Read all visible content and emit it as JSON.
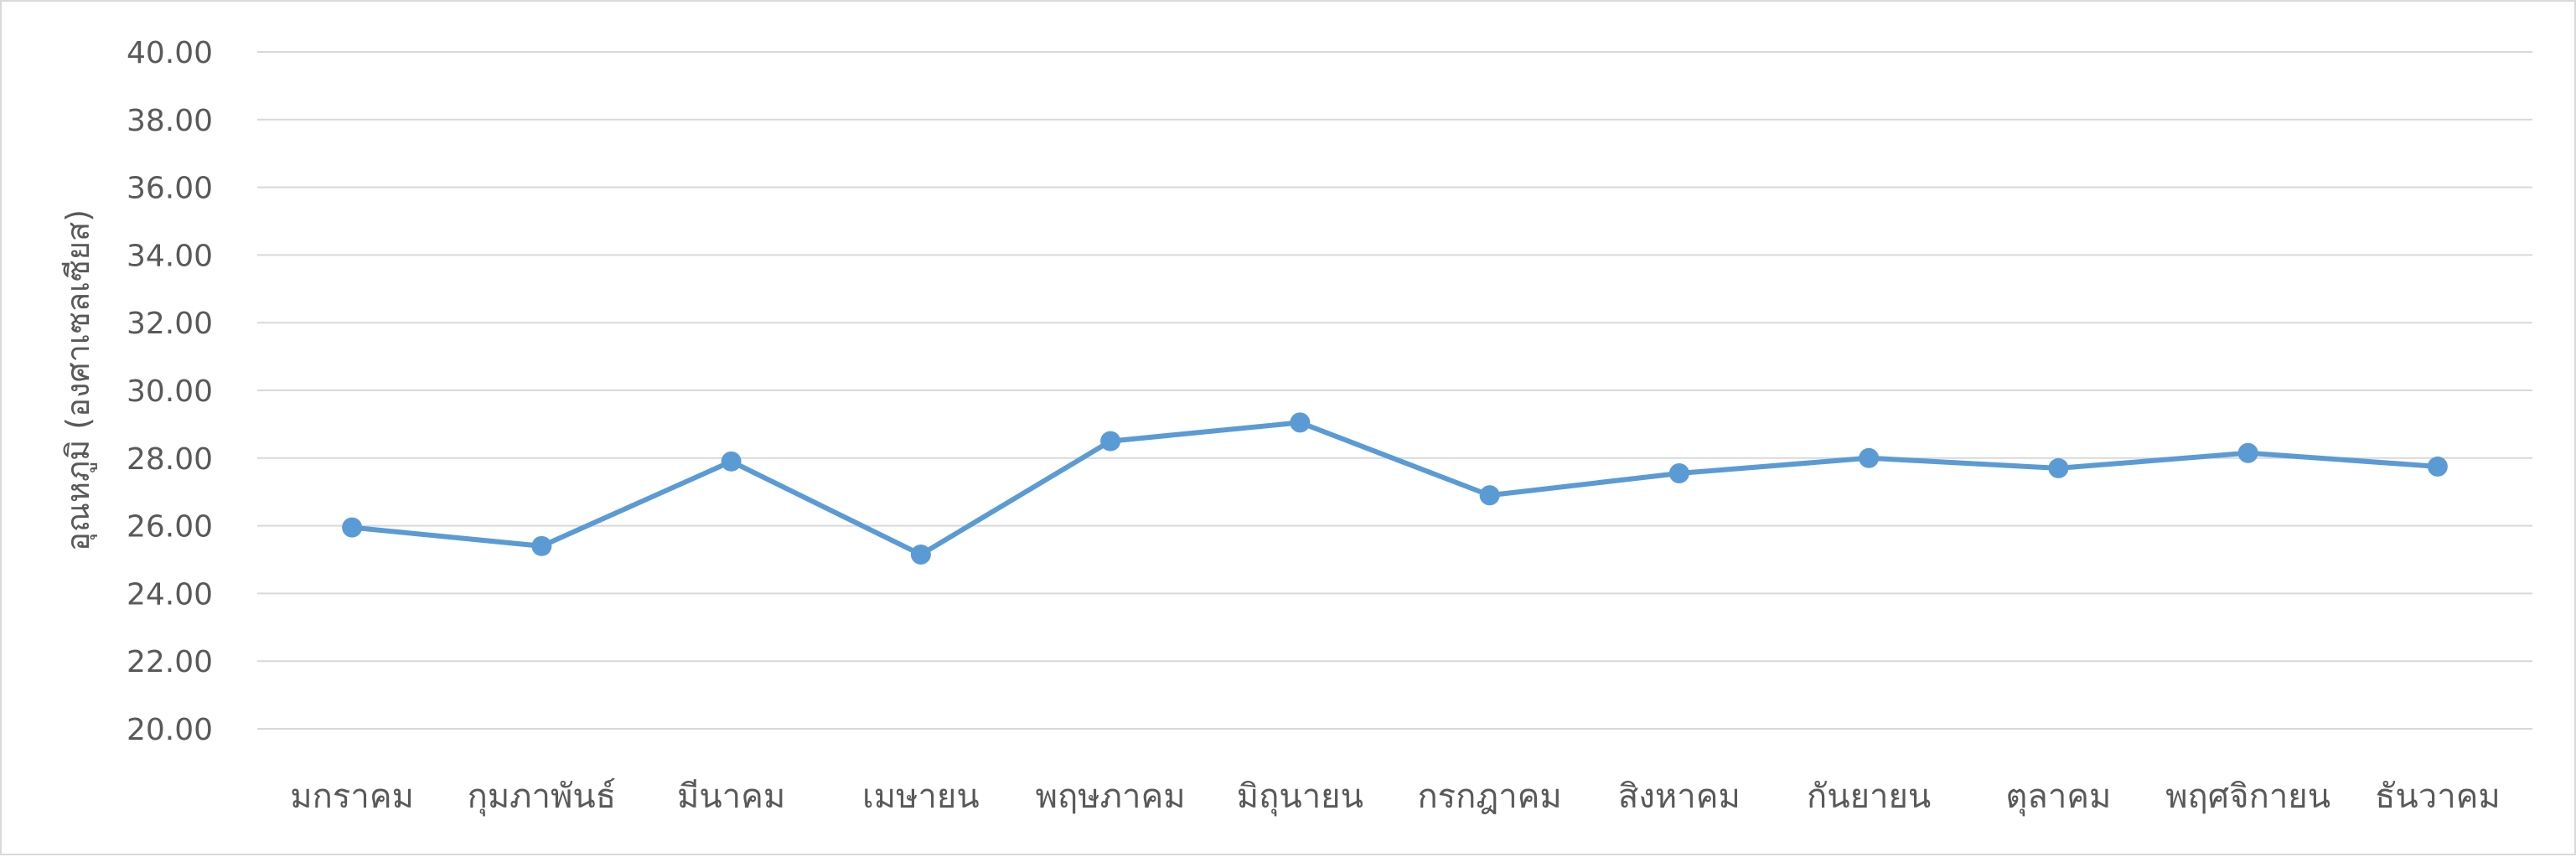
{
  "chart_data": {
    "type": "line",
    "title": "",
    "xlabel": "",
    "ylabel": "อุณหภูมิ (องศาเซลเซียส)",
    "ylim": [
      20,
      40
    ],
    "y_ticks": [
      "20.00",
      "22.00",
      "24.00",
      "26.00",
      "28.00",
      "30.00",
      "32.00",
      "34.00",
      "36.00",
      "38.00",
      "40.00"
    ],
    "categories": [
      "มกราคม",
      "กุมภาพันธ์",
      "มีนาคม",
      "เมษายน",
      "พฤษภาคม",
      "มิถุนายน",
      "กรกฎาคม",
      "สิงหาคม",
      "กันยายน",
      "ตุลาคม",
      "พฤศจิกายน",
      "ธันวาคม"
    ],
    "series": [
      {
        "values": [
          25.95,
          25.4,
          27.9,
          25.15,
          28.5,
          29.05,
          26.9,
          27.55,
          28.0,
          27.7,
          28.15,
          27.75
        ]
      }
    ],
    "grid": true,
    "legend": "none",
    "colors": {
      "line": "#5b9bd5",
      "grid": "#d9d9d9",
      "text": "#595959"
    }
  }
}
